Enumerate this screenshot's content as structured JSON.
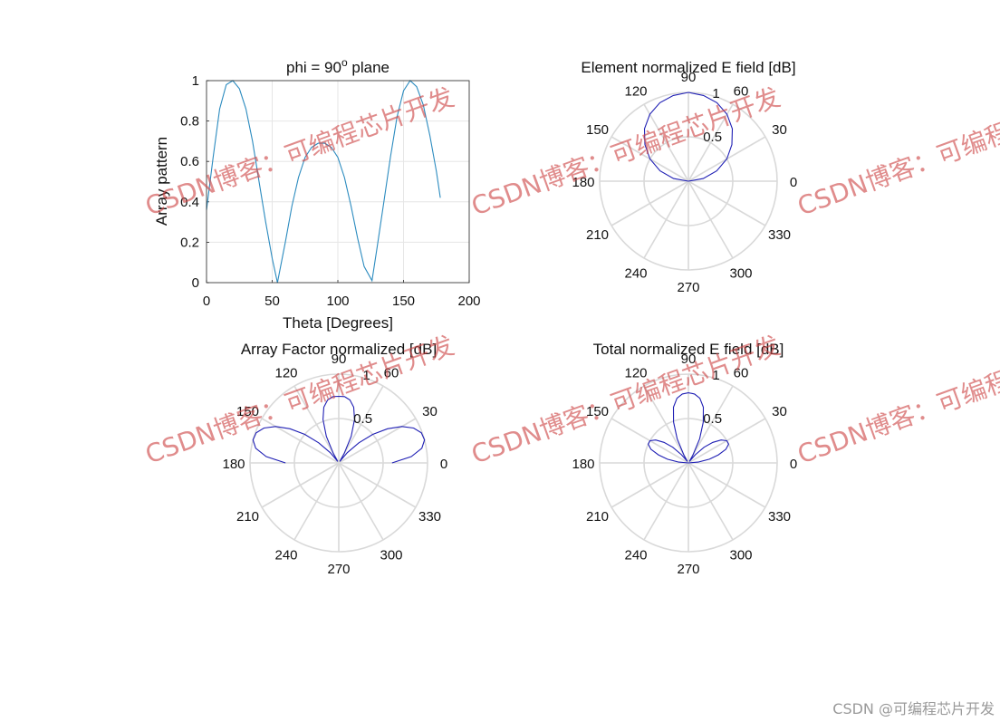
{
  "chart_data": [
    {
      "type": "line",
      "title": "phi = 90",
      "title_sup": "o",
      "title_suffix": " plane",
      "xlabel": "Theta [Degrees]",
      "ylabel": "Array pattern",
      "xlim": [
        0,
        200
      ],
      "ylim": [
        0,
        1
      ],
      "grid": true,
      "xticks": [
        "0",
        "50",
        "100",
        "150",
        "200"
      ],
      "yticks": [
        "0",
        "0.2",
        "0.4",
        "0.6",
        "0.8",
        "1"
      ],
      "line_color": "#2b8bbf",
      "x": [
        0,
        5,
        10,
        15,
        20,
        25,
        30,
        35,
        40,
        45,
        50,
        54,
        60,
        65,
        70,
        75,
        80,
        85,
        90,
        95,
        100,
        105,
        110,
        115,
        120,
        126,
        130,
        135,
        140,
        145,
        150,
        155,
        160,
        165,
        170,
        175,
        178
      ],
      "y": [
        0.36,
        0.62,
        0.86,
        0.98,
        1.0,
        0.96,
        0.86,
        0.7,
        0.5,
        0.3,
        0.12,
        0.0,
        0.2,
        0.38,
        0.52,
        0.62,
        0.67,
        0.69,
        0.69,
        0.67,
        0.62,
        0.52,
        0.38,
        0.22,
        0.08,
        0.01,
        0.18,
        0.4,
        0.62,
        0.82,
        0.95,
        1.0,
        0.97,
        0.88,
        0.73,
        0.55,
        0.42
      ]
    },
    {
      "type": "polar",
      "title": "Element normalized E field [dB]",
      "angle_labels": [
        "0",
        "30",
        "60",
        "90",
        "120",
        "150",
        "180",
        "210",
        "240",
        "270",
        "300",
        "330"
      ],
      "radial_labels": [
        "0.5",
        "1"
      ],
      "rlim": [
        0,
        1
      ],
      "line_color": "#1f1fb4",
      "theta_deg": [
        0,
        10,
        20,
        30,
        40,
        50,
        60,
        70,
        80,
        90,
        100,
        110,
        120,
        130,
        140,
        150,
        160,
        170,
        180
      ],
      "r": [
        0.0,
        0.17,
        0.34,
        0.5,
        0.64,
        0.77,
        0.87,
        0.94,
        0.98,
        1.0,
        0.98,
        0.94,
        0.87,
        0.77,
        0.64,
        0.5,
        0.34,
        0.17,
        0.0
      ]
    },
    {
      "type": "polar",
      "title": "Array Factor normalized [dB]",
      "angle_labels": [
        "0",
        "30",
        "60",
        "90",
        "120",
        "150",
        "180",
        "210",
        "240",
        "270",
        "300",
        "330"
      ],
      "radial_labels": [
        "0.5",
        "1"
      ],
      "rlim": [
        0,
        1
      ],
      "line_color": "#1f1fb4",
      "theta_deg": [
        0,
        5,
        10,
        15,
        20,
        25,
        30,
        35,
        40,
        45,
        50,
        55,
        60,
        65,
        70,
        75,
        80,
        85,
        90,
        95,
        100,
        105,
        110,
        115,
        120,
        125,
        130,
        135,
        140,
        145,
        150,
        155,
        160,
        165,
        170,
        175,
        180
      ],
      "r": [
        0.6,
        0.82,
        0.95,
        1.0,
        0.99,
        0.93,
        0.82,
        0.67,
        0.5,
        0.32,
        0.15,
        0.02,
        0.12,
        0.33,
        0.52,
        0.65,
        0.72,
        0.75,
        0.75,
        0.75,
        0.72,
        0.65,
        0.52,
        0.33,
        0.12,
        0.02,
        0.15,
        0.32,
        0.5,
        0.67,
        0.82,
        0.93,
        0.99,
        1.0,
        0.95,
        0.82,
        0.6
      ]
    },
    {
      "type": "polar",
      "title": "Total normalized E field [dB]",
      "angle_labels": [
        "0",
        "30",
        "60",
        "90",
        "120",
        "150",
        "180",
        "210",
        "240",
        "270",
        "300",
        "330"
      ],
      "radial_labels": [
        "0.5",
        "1"
      ],
      "rlim": [
        0,
        1
      ],
      "line_color": "#1f1fb4",
      "theta_deg": [
        0,
        5,
        10,
        15,
        20,
        25,
        30,
        35,
        40,
        45,
        50,
        55,
        60,
        65,
        70,
        75,
        80,
        85,
        90,
        95,
        100,
        105,
        110,
        115,
        120,
        125,
        130,
        135,
        140,
        145,
        150,
        155,
        160,
        165,
        170,
        175,
        180
      ],
      "r": [
        0.0,
        0.11,
        0.24,
        0.35,
        0.45,
        0.5,
        0.5,
        0.45,
        0.36,
        0.25,
        0.12,
        0.02,
        0.1,
        0.3,
        0.49,
        0.65,
        0.74,
        0.78,
        0.79,
        0.78,
        0.74,
        0.65,
        0.49,
        0.3,
        0.1,
        0.02,
        0.12,
        0.25,
        0.36,
        0.45,
        0.5,
        0.5,
        0.45,
        0.35,
        0.24,
        0.11,
        0.0
      ]
    }
  ],
  "watermark": {
    "text": "CSDN博客：可编程芯片开发",
    "credit": "CSDN @可编程芯片开发",
    "color": "#cd4646"
  }
}
